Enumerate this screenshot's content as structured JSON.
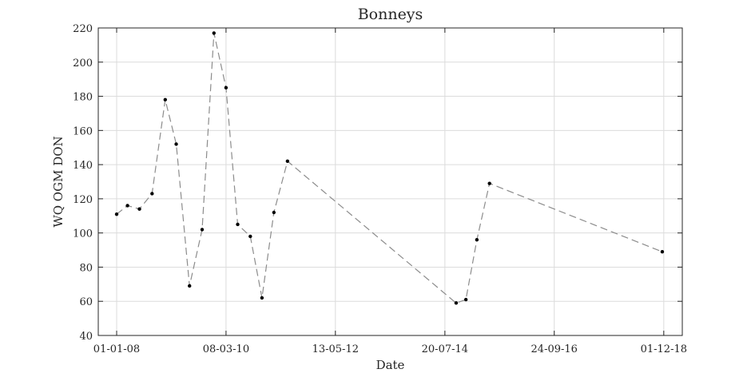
{
  "chart_data": {
    "type": "line",
    "title": "Bonneys",
    "xlabel": "Date",
    "ylabel": "WQ OGM DON",
    "x_tick_labels": [
      "01-01-08",
      "08-03-10",
      "13-05-12",
      "20-07-14",
      "24-09-16",
      "01-12-18"
    ],
    "x_tick_dates": [
      "2008-01-01",
      "2010-03-08",
      "2012-05-13",
      "2014-07-20",
      "2016-09-24",
      "2018-12-01"
    ],
    "xlim": [
      "2007-08-20",
      "2019-04-15"
    ],
    "ylim": [
      40,
      220
    ],
    "y_ticks": [
      40,
      60,
      80,
      100,
      120,
      140,
      160,
      180,
      200,
      220
    ],
    "grid": true,
    "series": [
      {
        "color": "#8c8c8c",
        "marker_color": "#000000",
        "x": [
          "2008-01-01",
          "2008-03-20",
          "2008-06-15",
          "2008-09-15",
          "2008-12-20",
          "2009-03-10",
          "2009-06-15",
          "2009-09-15",
          "2009-12-10",
          "2010-03-08",
          "2010-06-01",
          "2010-09-01",
          "2010-11-25",
          "2011-02-20",
          "2011-05-30",
          "2014-10-10",
          "2014-12-20",
          "2015-03-10",
          "2015-06-10",
          "2018-11-20"
        ],
        "y": [
          111,
          116,
          114,
          123,
          178,
          152,
          69,
          102,
          217,
          185,
          105,
          98,
          62,
          112,
          142,
          59,
          61,
          96,
          129,
          89
        ]
      }
    ]
  }
}
